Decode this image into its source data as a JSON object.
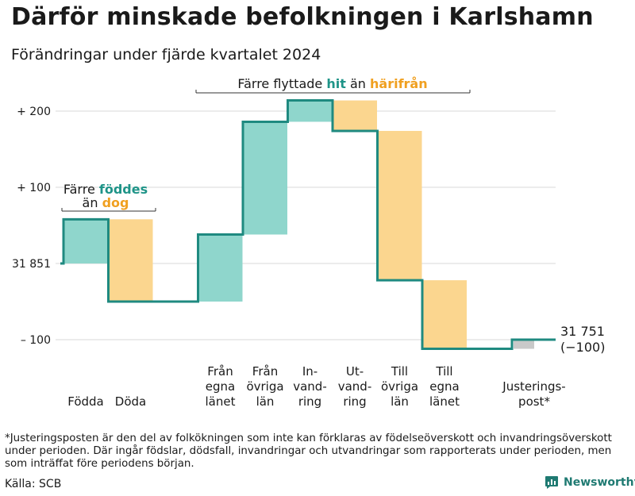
{
  "title": "Därför minskade befolkningen i Karlshamn",
  "subtitle": "Förändringar under fjärde kvartalet 2024",
  "footnote": "*Justeringsposten är den del av folkökningen som inte kan förklaras av födelseöverskott och invandringsöverskott under perioden. Där ingår födslar, dödsfall, invandringar och utvandringar som rapporterats under perioden, men som inträffat före periodens början.",
  "source": "Källa: SCB",
  "brand": "Newsworthy",
  "colors": {
    "increase_fill": "#8fd6cc",
    "decrease_fill": "#fbd68f",
    "adjust_fill": "#c9c9c9",
    "line": "#1f8a80",
    "teal_text": "#1f9488",
    "orange_text": "#f0a020",
    "grid": "#d8d8d8"
  },
  "annotations": {
    "births": {
      "line1": "Färre",
      "teal": "föddes",
      "line2": "än",
      "orange": "dog"
    },
    "migration": {
      "pre": "Färre flyttade",
      "teal": "hit",
      "mid": "än",
      "orange": "härifrån"
    }
  },
  "chart_data": {
    "type": "waterfall",
    "title": "Därför minskade befolkningen i Karlshamn",
    "subtitle": "Förändringar under fjärde kvartalet 2024",
    "start_value": 31851,
    "end_value": 31751,
    "end_label": "31 751",
    "end_change_label": "(−100)",
    "y_ticks": [
      {
        "value": 200,
        "label": "+ 200"
      },
      {
        "value": 100,
        "label": "+ 100"
      },
      {
        "value": 0,
        "label": "31 851"
      },
      {
        "value": -100,
        "label": "– 100"
      }
    ],
    "ylim": [
      -115,
      225
    ],
    "grid": true,
    "steps": [
      {
        "label_lines": [
          "Födda"
        ],
        "value": 58,
        "kind": "increase"
      },
      {
        "label_lines": [
          "Döda"
        ],
        "value": -108,
        "kind": "decrease"
      },
      {
        "label_lines": [
          "Från",
          "egna",
          "länet"
        ],
        "value": 88,
        "kind": "increase"
      },
      {
        "label_lines": [
          "Från",
          "övriga",
          "län"
        ],
        "value": 148,
        "kind": "increase"
      },
      {
        "label_lines": [
          "In-",
          "vand-",
          "ring"
        ],
        "value": 28,
        "kind": "increase"
      },
      {
        "label_lines": [
          "Ut-",
          "vand-",
          "ring"
        ],
        "value": -40,
        "kind": "decrease"
      },
      {
        "label_lines": [
          "Till",
          "övriga",
          "län"
        ],
        "value": -196,
        "kind": "decrease"
      },
      {
        "label_lines": [
          "Till",
          "egna",
          "länet"
        ],
        "value": -90,
        "kind": "decrease"
      },
      {
        "label_lines": [
          "Justerings-",
          "post*"
        ],
        "value": 12,
        "kind": "adjustment"
      }
    ]
  }
}
